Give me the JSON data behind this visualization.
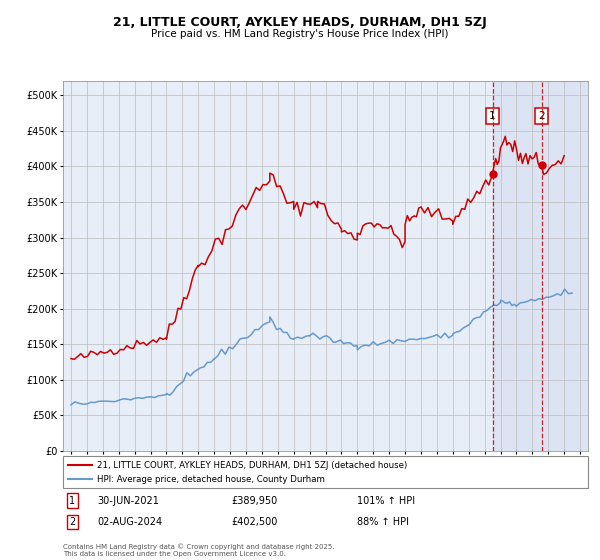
{
  "title_line1": "21, LITTLE COURT, AYKLEY HEADS, DURHAM, DH1 5ZJ",
  "title_line2": "Price paid vs. HM Land Registry's House Price Index (HPI)",
  "legend_label_red": "21, LITTLE COURT, AYKLEY HEADS, DURHAM, DH1 5ZJ (detached house)",
  "legend_label_blue": "HPI: Average price, detached house, County Durham",
  "transaction1_date": "30-JUN-2021",
  "transaction1_price": "£389,950",
  "transaction1_hpi": "101% ↑ HPI",
  "transaction2_date": "02-AUG-2024",
  "transaction2_price": "£402,500",
  "transaction2_hpi": "88% ↑ HPI",
  "footer": "Contains HM Land Registry data © Crown copyright and database right 2025.\nThis data is licensed under the Open Government Licence v3.0.",
  "xlim_left": 1994.5,
  "xlim_right": 2027.5,
  "ylim_bottom": 0,
  "ylim_top": 520000,
  "yticks": [
    0,
    50000,
    100000,
    150000,
    200000,
    250000,
    300000,
    350000,
    400000,
    450000,
    500000
  ],
  "color_red": "#cc0000",
  "color_blue": "#6699cc",
  "color_bg": "#e8eef8",
  "color_grid": "#bbbbbb",
  "transaction1_x": 2021.5,
  "transaction2_x": 2024.58,
  "transaction1_y": 389950,
  "transaction2_y": 402500
}
